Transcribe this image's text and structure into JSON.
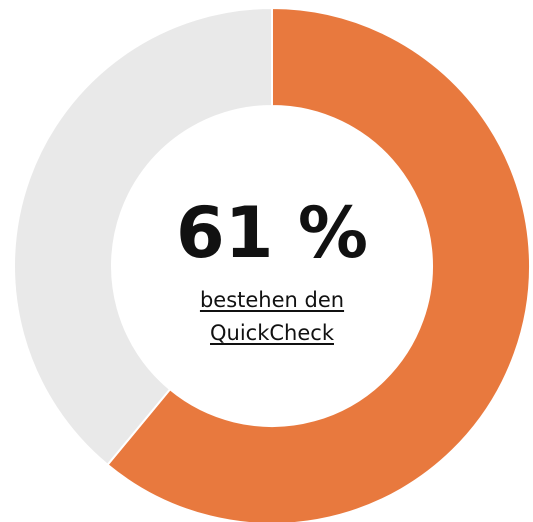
{
  "chart_data": {
    "type": "pie",
    "donut": true,
    "values": [
      61,
      39
    ],
    "value_labels": [
      "61 %",
      null
    ],
    "colors": [
      "#e8793e",
      "#e9e9e9"
    ],
    "subtitle": "bestehen den QuickCheck"
  }
}
